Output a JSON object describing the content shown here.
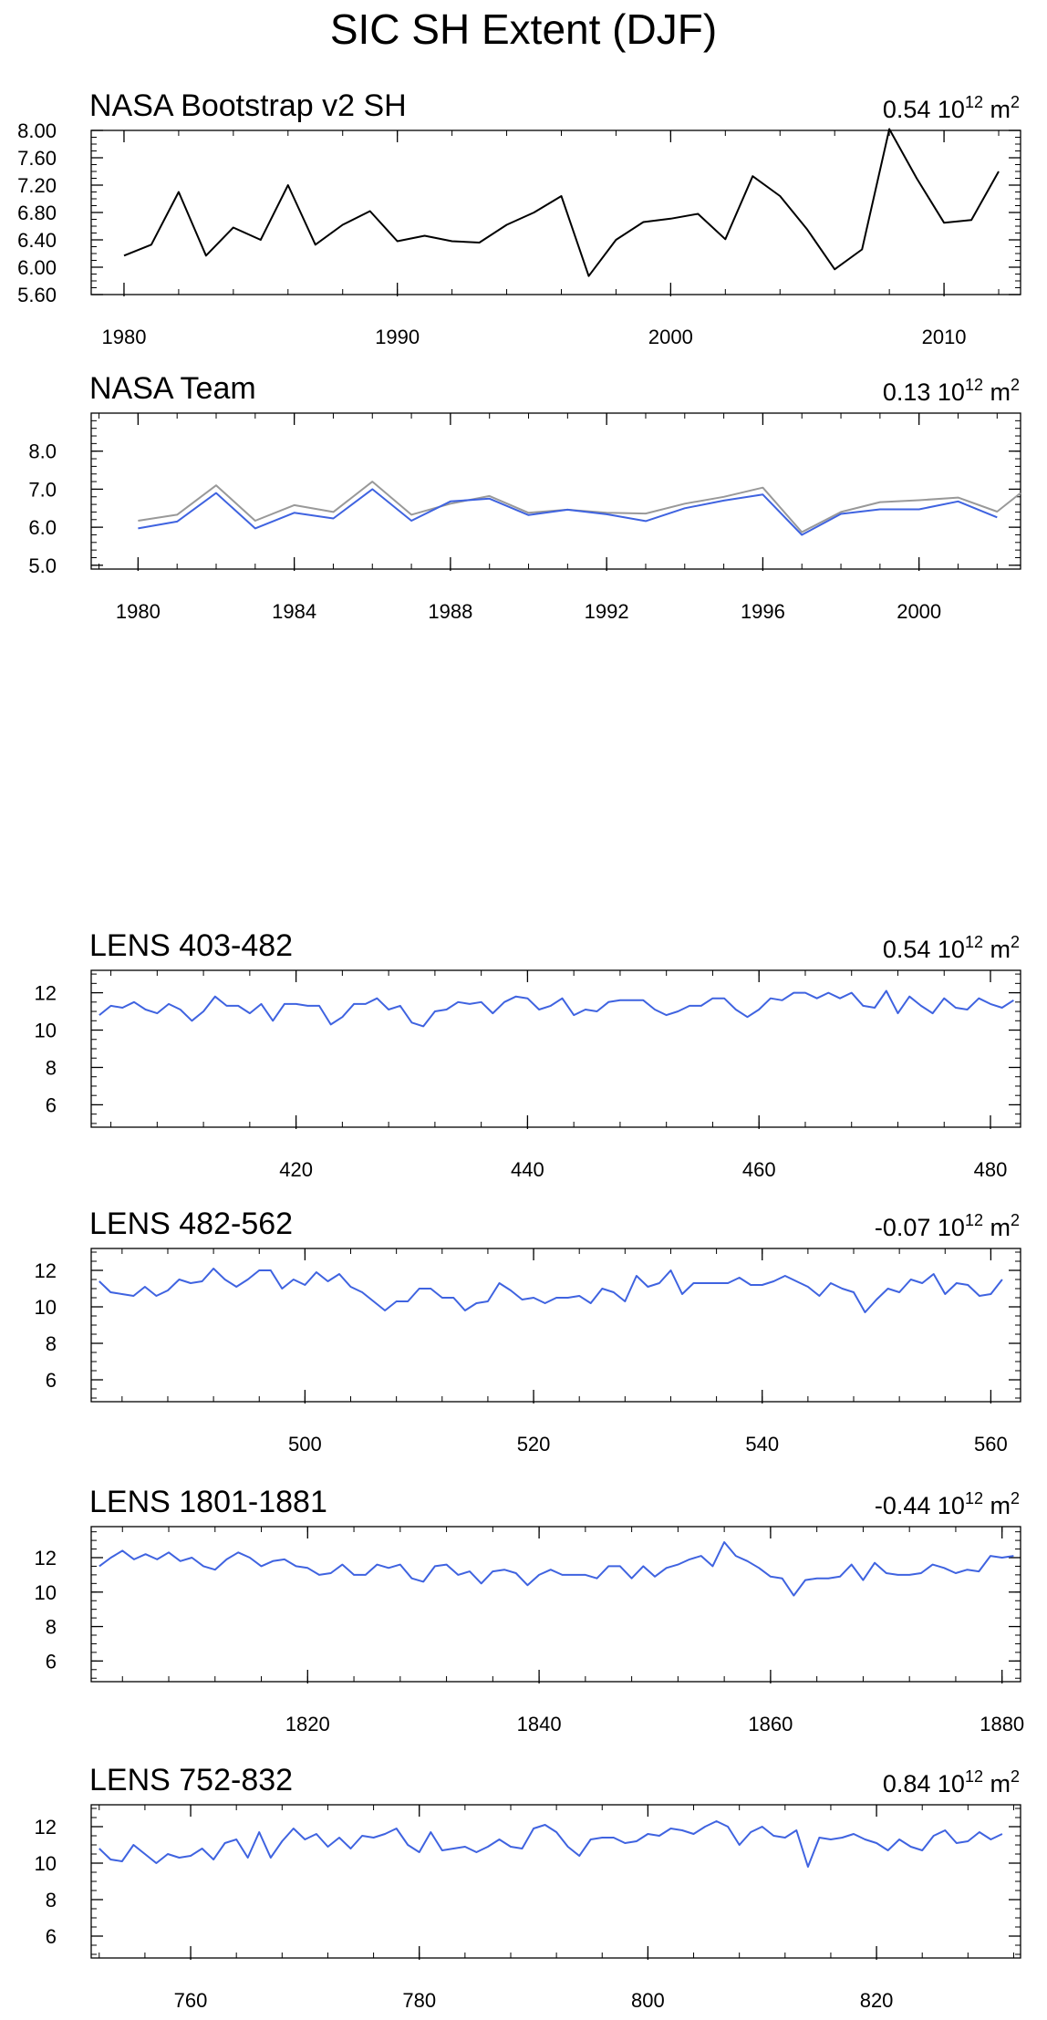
{
  "figure_title": "SIC SH Extent (DJF)",
  "chart_data": [
    {
      "type": "line",
      "title": "NASA Bootstrap v2 SH",
      "annotation_value": "0.54",
      "annotation_unit_base": "10",
      "annotation_unit_exp": "12",
      "annotation_unit_tail": "m",
      "annotation_unit_tail_exp": "2",
      "xlim": [
        1978.8,
        2012.8
      ],
      "ylim": [
        5.6,
        8.0
      ],
      "xticks": [
        1980,
        1990,
        2000,
        2010
      ],
      "xtick_labels": [
        "1980",
        "1990",
        "2000",
        "2010"
      ],
      "yticks": [
        5.6,
        6.0,
        6.4,
        6.8,
        7.2,
        7.6,
        8.0
      ],
      "ytick_labels": [
        "5.60",
        "6.00",
        "6.40",
        "6.80",
        "7.20",
        "7.60",
        "8.00"
      ],
      "x_minor_step": 2,
      "y_minor_step": 0.1,
      "series": [
        {
          "color": "#000000",
          "x": [
            1980,
            1981,
            1982,
            1983,
            1984,
            1985,
            1986,
            1987,
            1988,
            1989,
            1990,
            1991,
            1992,
            1993,
            1994,
            1995,
            1996,
            1997,
            1998,
            1999,
            2000,
            2001,
            2002,
            2003,
            2004,
            2005,
            2006,
            2007,
            2008,
            2009,
            2010,
            2011,
            2012
          ],
          "values": [
            6.17,
            6.33,
            7.1,
            6.17,
            6.58,
            6.4,
            7.2,
            6.33,
            6.62,
            6.82,
            6.38,
            6.46,
            6.38,
            6.36,
            6.62,
            6.8,
            7.04,
            5.87,
            6.4,
            6.66,
            6.71,
            6.78,
            6.41,
            7.33,
            7.04,
            6.55,
            5.97,
            6.26,
            8.02,
            7.3,
            6.65,
            6.69,
            7.4
          ]
        }
      ]
    },
    {
      "type": "line",
      "title": "NASA Team",
      "annotation_value": "0.13",
      "annotation_unit_base": "10",
      "annotation_unit_exp": "12",
      "annotation_unit_tail": "m",
      "annotation_unit_tail_exp": "2",
      "xlim": [
        1978.8,
        2002.6
      ],
      "ylim": [
        4.9,
        9.0
      ],
      "xticks": [
        1980,
        1984,
        1988,
        1992,
        1996,
        2000
      ],
      "xtick_labels": [
        "1980",
        "1984",
        "1988",
        "1992",
        "1996",
        "2000"
      ],
      "yticks": [
        5.0,
        6.0,
        7.0,
        8.0
      ],
      "ytick_labels": [
        "5.0",
        "6.0",
        "7.0",
        "8.0"
      ],
      "x_minor_step": 1,
      "y_minor_step": 0.2,
      "series": [
        {
          "color": "#999999",
          "x": [
            1980,
            1981,
            1982,
            1983,
            1984,
            1985,
            1986,
            1987,
            1988,
            1989,
            1990,
            1991,
            1992,
            1993,
            1994,
            1995,
            1996,
            1997,
            1998,
            1999,
            2000,
            2001,
            2002,
            2002.6
          ],
          "values": [
            6.17,
            6.33,
            7.1,
            6.17,
            6.58,
            6.4,
            7.2,
            6.33,
            6.62,
            6.82,
            6.38,
            6.46,
            6.38,
            6.36,
            6.62,
            6.8,
            7.04,
            5.87,
            6.4,
            6.66,
            6.71,
            6.78,
            6.41,
            6.9
          ]
        },
        {
          "color": "#3f63e0",
          "x": [
            1980,
            1981,
            1982,
            1983,
            1984,
            1985,
            1986,
            1987,
            1988,
            1989,
            1990,
            1991,
            1992,
            1993,
            1994,
            1995,
            1996,
            1997,
            1998,
            1999,
            2000,
            2001,
            2002
          ],
          "values": [
            5.97,
            6.15,
            6.9,
            5.97,
            6.38,
            6.23,
            7.0,
            6.17,
            6.68,
            6.75,
            6.32,
            6.46,
            6.34,
            6.16,
            6.5,
            6.7,
            6.86,
            5.8,
            6.35,
            6.47,
            6.47,
            6.68,
            6.26
          ]
        }
      ]
    },
    {
      "type": "line",
      "title": "LENS 403-482",
      "annotation_value": "0.54",
      "annotation_unit_base": "10",
      "annotation_unit_exp": "12",
      "annotation_unit_tail": "m",
      "annotation_unit_tail_exp": "2",
      "xlim": [
        402.3,
        482.6
      ],
      "ylim": [
        4.8,
        13.2
      ],
      "xticks": [
        420,
        440,
        460,
        480
      ],
      "xtick_labels": [
        "420",
        "440",
        "460",
        "480"
      ],
      "yticks": [
        6,
        8,
        10,
        12
      ],
      "ytick_labels": [
        "6",
        "8",
        "10",
        "12"
      ],
      "x_minor_step": 4,
      "y_minor_step": 0.5,
      "series": [
        {
          "color": "#3f63e0",
          "x_start": 403,
          "values": [
            10.8,
            11.3,
            11.2,
            11.5,
            11.1,
            10.9,
            11.4,
            11.1,
            10.5,
            11.0,
            11.8,
            11.3,
            11.3,
            10.9,
            11.4,
            10.5,
            11.4,
            11.4,
            11.3,
            11.3,
            10.3,
            10.7,
            11.4,
            11.4,
            11.7,
            11.1,
            11.3,
            10.4,
            10.2,
            11.0,
            11.1,
            11.5,
            11.4,
            11.5,
            10.9,
            11.5,
            11.8,
            11.7,
            11.1,
            11.3,
            11.7,
            10.8,
            11.1,
            11.0,
            11.5,
            11.6,
            11.6,
            11.6,
            11.1,
            10.8,
            11.0,
            11.3,
            11.3,
            11.7,
            11.7,
            11.1,
            10.7,
            11.1,
            11.7,
            11.6,
            12.0,
            12.0,
            11.7,
            12.0,
            11.7,
            12.0,
            11.3,
            11.2,
            12.1,
            10.9,
            11.8,
            11.3,
            10.9,
            11.7,
            11.2,
            11.1,
            11.7,
            11.4,
            11.2,
            11.6
          ]
        }
      ]
    },
    {
      "type": "line",
      "title": "LENS 482-562",
      "annotation_value": "-0.07",
      "annotation_unit_base": "10",
      "annotation_unit_exp": "12",
      "annotation_unit_tail": "m",
      "annotation_unit_tail_exp": "2",
      "xlim": [
        481.3,
        562.6
      ],
      "ylim": [
        4.8,
        13.2
      ],
      "xticks": [
        500,
        520,
        540,
        560
      ],
      "xtick_labels": [
        "500",
        "520",
        "540",
        "560"
      ],
      "yticks": [
        6,
        8,
        10,
        12
      ],
      "ytick_labels": [
        "6",
        "8",
        "10",
        "12"
      ],
      "x_minor_step": 4,
      "y_minor_step": 0.5,
      "series": [
        {
          "color": "#3f63e0",
          "x_start": 482,
          "values": [
            11.4,
            10.8,
            10.7,
            10.6,
            11.1,
            10.6,
            10.9,
            11.5,
            11.3,
            11.4,
            12.1,
            11.5,
            11.1,
            11.5,
            12.0,
            12.0,
            11.0,
            11.5,
            11.2,
            11.9,
            11.4,
            11.8,
            11.1,
            10.8,
            10.3,
            9.8,
            10.3,
            10.3,
            11.0,
            11.0,
            10.5,
            10.5,
            9.8,
            10.2,
            10.3,
            11.3,
            10.9,
            10.4,
            10.5,
            10.2,
            10.5,
            10.5,
            10.6,
            10.2,
            11.0,
            10.8,
            10.3,
            11.7,
            11.1,
            11.3,
            12.0,
            10.7,
            11.3,
            11.3,
            11.3,
            11.3,
            11.6,
            11.2,
            11.2,
            11.4,
            11.7,
            11.4,
            11.1,
            10.6,
            11.3,
            11.0,
            10.8,
            9.7,
            10.4,
            11.0,
            10.8,
            11.5,
            11.3,
            11.8,
            10.7,
            11.3,
            11.2,
            10.6,
            10.7,
            11.5
          ]
        }
      ]
    },
    {
      "type": "line",
      "title": "LENS 1801-1881",
      "annotation_value": "-0.44",
      "annotation_unit_base": "10",
      "annotation_unit_exp": "12",
      "annotation_unit_tail": "m",
      "annotation_unit_tail_exp": "2",
      "xlim": [
        1801.3,
        1881.6
      ],
      "ylim": [
        4.8,
        13.8
      ],
      "xticks": [
        1820,
        1840,
        1860,
        1880
      ],
      "xtick_labels": [
        "1820",
        "1840",
        "1860",
        "1880"
      ],
      "yticks": [
        6,
        8,
        10,
        12
      ],
      "ytick_labels": [
        "6",
        "8",
        "10",
        "12"
      ],
      "x_minor_step": 4,
      "y_minor_step": 0.5,
      "series": [
        {
          "color": "#3f63e0",
          "x_start": 1802,
          "values": [
            11.5,
            12.0,
            12.4,
            11.9,
            12.2,
            11.9,
            12.3,
            11.8,
            12.0,
            11.5,
            11.3,
            11.9,
            12.3,
            12.0,
            11.5,
            11.8,
            11.9,
            11.5,
            11.4,
            11.0,
            11.1,
            11.6,
            11.0,
            11.0,
            11.6,
            11.4,
            11.6,
            10.8,
            10.6,
            11.5,
            11.6,
            11.0,
            11.2,
            10.5,
            11.2,
            11.3,
            11.1,
            10.4,
            11.0,
            11.3,
            11.0,
            11.0,
            11.0,
            10.8,
            11.5,
            11.5,
            10.8,
            11.5,
            10.9,
            11.4,
            11.6,
            11.9,
            12.1,
            11.5,
            12.9,
            12.1,
            11.8,
            11.4,
            10.9,
            10.8,
            9.8,
            10.7,
            10.8,
            10.8,
            10.9,
            11.6,
            10.7,
            11.7,
            11.1,
            11.0,
            11.0,
            11.1,
            11.6,
            11.4,
            11.1,
            11.3,
            11.2,
            12.1,
            12.0,
            12.1
          ]
        }
      ]
    },
    {
      "type": "line",
      "title": "LENS 752-832",
      "annotation_value": "0.84",
      "annotation_unit_base": "10",
      "annotation_unit_exp": "12",
      "annotation_unit_tail": "m",
      "annotation_unit_tail_exp": "2",
      "xlim": [
        751.3,
        832.6
      ],
      "ylim": [
        4.8,
        13.2
      ],
      "xticks": [
        760,
        780,
        800,
        820
      ],
      "xtick_labels": [
        "760",
        "780",
        "800",
        "820"
      ],
      "yticks": [
        6,
        8,
        10,
        12
      ],
      "ytick_labels": [
        "6",
        "8",
        "10",
        "12"
      ],
      "x_minor_step": 4,
      "y_minor_step": 0.5,
      "series": [
        {
          "color": "#3f63e0",
          "x_start": 752,
          "values": [
            10.8,
            10.2,
            10.1,
            11.0,
            10.5,
            10.0,
            10.5,
            10.3,
            10.4,
            10.8,
            10.2,
            11.1,
            11.3,
            10.3,
            11.7,
            10.3,
            11.2,
            11.9,
            11.3,
            11.6,
            10.9,
            11.4,
            10.8,
            11.5,
            11.4,
            11.6,
            11.9,
            11.0,
            10.6,
            11.7,
            10.7,
            10.8,
            10.9,
            10.6,
            10.9,
            11.3,
            10.9,
            10.8,
            11.9,
            12.1,
            11.7,
            10.9,
            10.4,
            11.3,
            11.4,
            11.4,
            11.1,
            11.2,
            11.6,
            11.5,
            11.9,
            11.8,
            11.6,
            12.0,
            12.3,
            12.0,
            11.0,
            11.7,
            12.0,
            11.5,
            11.4,
            11.8,
            9.8,
            11.4,
            11.3,
            11.4,
            11.6,
            11.3,
            11.1,
            10.7,
            11.3,
            10.9,
            10.7,
            11.5,
            11.8,
            11.1,
            11.2,
            11.7,
            11.3,
            11.6
          ]
        }
      ]
    }
  ]
}
